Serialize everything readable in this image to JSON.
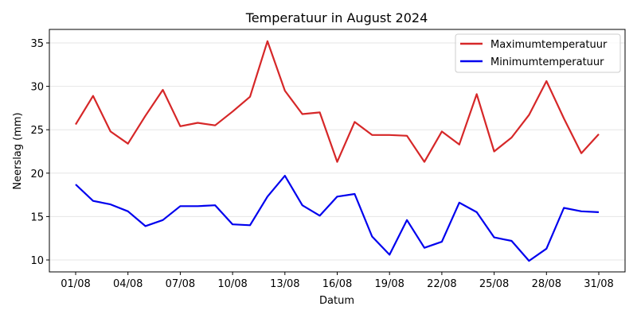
{
  "chart_data": {
    "type": "line",
    "title": "Temperatuur in August 2024",
    "xlabel": "Datum",
    "ylabel": "Neerslag (mm)",
    "ylim": [
      8.6,
      36.5
    ],
    "yticks": [
      10,
      15,
      20,
      25,
      30,
      35
    ],
    "xtick_labels": [
      "01/08",
      "04/08",
      "07/08",
      "10/08",
      "13/08",
      "16/08",
      "19/08",
      "22/08",
      "25/08",
      "28/08",
      "31/08"
    ],
    "xtick_days": [
      1,
      4,
      7,
      10,
      13,
      16,
      19,
      22,
      25,
      28,
      31
    ],
    "grid": "y",
    "legend_position": "upper right",
    "x": [
      "01/08",
      "02/08",
      "03/08",
      "04/08",
      "05/08",
      "06/08",
      "07/08",
      "08/08",
      "09/08",
      "10/08",
      "11/08",
      "12/08",
      "13/08",
      "14/08",
      "15/08",
      "16/08",
      "17/08",
      "18/08",
      "19/08",
      "20/08",
      "21/08",
      "22/08",
      "23/08",
      "24/08",
      "25/08",
      "26/08",
      "27/08",
      "28/08",
      "29/08",
      "30/08",
      "31/08"
    ],
    "series": [
      {
        "name": "Maximumtemperatuur",
        "color": "#d62728",
        "values": [
          25.6,
          28.9,
          24.8,
          23.4,
          26.6,
          29.6,
          25.4,
          25.8,
          25.5,
          27.1,
          28.8,
          35.2,
          29.5,
          26.8,
          27.0,
          21.3,
          25.9,
          24.4,
          24.4,
          24.3,
          21.3,
          24.8,
          23.3,
          29.1,
          22.5,
          24.1,
          26.7,
          30.6,
          26.3,
          22.3,
          24.5
        ]
      },
      {
        "name": "Minimumtemperatuur",
        "color": "#0000ee",
        "values": [
          18.7,
          16.8,
          16.4,
          15.6,
          13.9,
          14.6,
          16.2,
          16.2,
          16.3,
          14.1,
          14.0,
          17.3,
          19.7,
          16.3,
          15.1,
          17.3,
          17.6,
          12.7,
          10.6,
          14.6,
          11.4,
          12.1,
          16.6,
          15.5,
          12.6,
          12.2,
          9.9,
          11.3,
          16.0,
          15.6,
          15.5
        ]
      }
    ]
  }
}
